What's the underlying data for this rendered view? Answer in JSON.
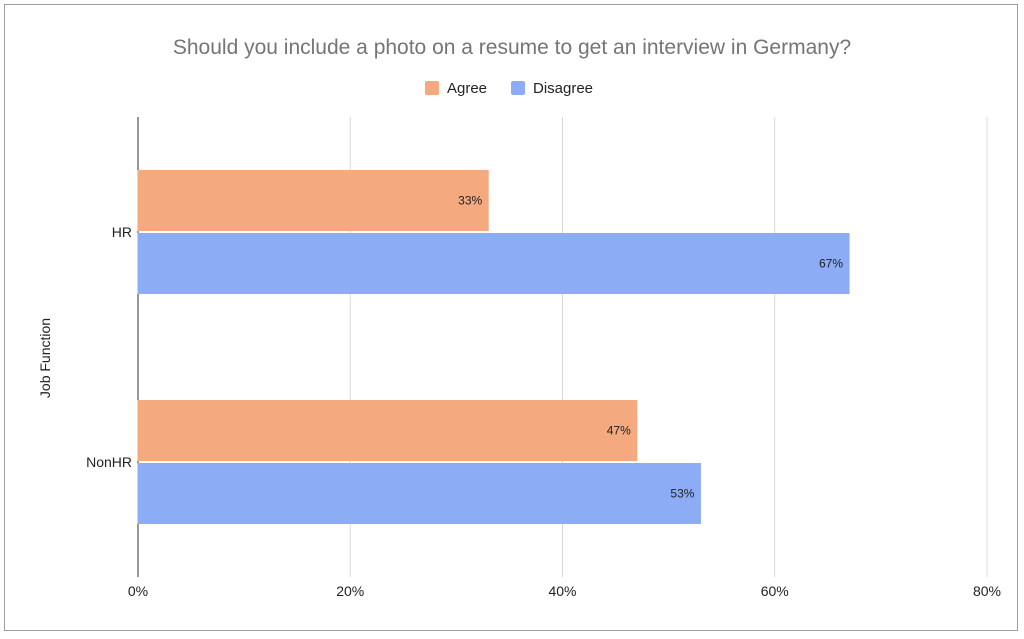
{
  "chart_data": {
    "type": "bar",
    "orientation": "horizontal",
    "title": "Should you include a photo on a resume to get an interview in Germany?",
    "xlabel": "",
    "ylabel": "Job Function",
    "categories": [
      "HR",
      "NonHR"
    ],
    "series": [
      {
        "name": "Agree",
        "values": [
          33,
          47
        ],
        "labels": [
          "33%",
          "47%"
        ],
        "color": "#f4a97e"
      },
      {
        "name": "Disagree",
        "values": [
          67,
          53
        ],
        "labels": [
          "67%",
          "53%"
        ],
        "color": "#8cacf5"
      }
    ],
    "xlim": [
      0,
      80
    ],
    "x_ticks": [
      {
        "value": 0,
        "label": "0%"
      },
      {
        "value": 20,
        "label": "20%"
      },
      {
        "value": 40,
        "label": "40%"
      },
      {
        "value": 60,
        "label": "60%"
      },
      {
        "value": 80,
        "label": "80%"
      }
    ],
    "legend_position": "top-center",
    "grid": true
  }
}
